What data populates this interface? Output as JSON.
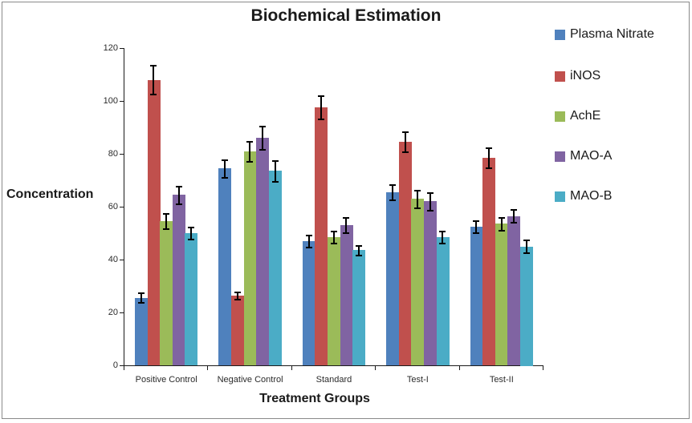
{
  "chart_data": {
    "type": "bar",
    "title": "Biochemical Estimation",
    "xlabel": "Treatment Groups",
    "ylabel": "Concentration",
    "categories": [
      "Positive Control",
      "Negative Control",
      "Standard",
      "Test-I",
      "Test-II"
    ],
    "series": [
      {
        "name": "Plasma Nitrate",
        "color": "#4F81BD",
        "values": [
          25.5,
          74.5,
          47,
          65.5,
          52.5
        ],
        "errors": [
          2,
          3.5,
          2.5,
          3,
          2.5
        ]
      },
      {
        "name": "iNOS",
        "color": "#C0504D",
        "values": [
          108,
          26.5,
          97.5,
          84.5,
          78.5
        ],
        "errors": [
          5.5,
          1.5,
          4.5,
          4,
          4
        ]
      },
      {
        "name": "AchE",
        "color": "#9BBB59",
        "values": [
          54.5,
          81,
          48.5,
          63,
          53.5
        ],
        "errors": [
          3,
          4,
          2.5,
          3.5,
          2.5
        ]
      },
      {
        "name": "MAO-A",
        "color": "#8064A2",
        "values": [
          64.5,
          86,
          53,
          62,
          56.5
        ],
        "errors": [
          3.5,
          4.5,
          3,
          3.5,
          2.5
        ]
      },
      {
        "name": "MAO-B",
        "color": "#4BACC6",
        "values": [
          50,
          73.5,
          43.5,
          48.5,
          45
        ],
        "errors": [
          2.5,
          4,
          2,
          2.5,
          2.5
        ]
      }
    ],
    "ylim": [
      0,
      120
    ],
    "ytick_step": 20,
    "ytick_labels": [
      "0",
      "20",
      "40",
      "60",
      "80",
      "100",
      "120"
    ],
    "grid": false,
    "error_bars": true,
    "legend_position": "right",
    "axis_color": "#1a1a1a",
    "error_bar_color": "#000000"
  }
}
